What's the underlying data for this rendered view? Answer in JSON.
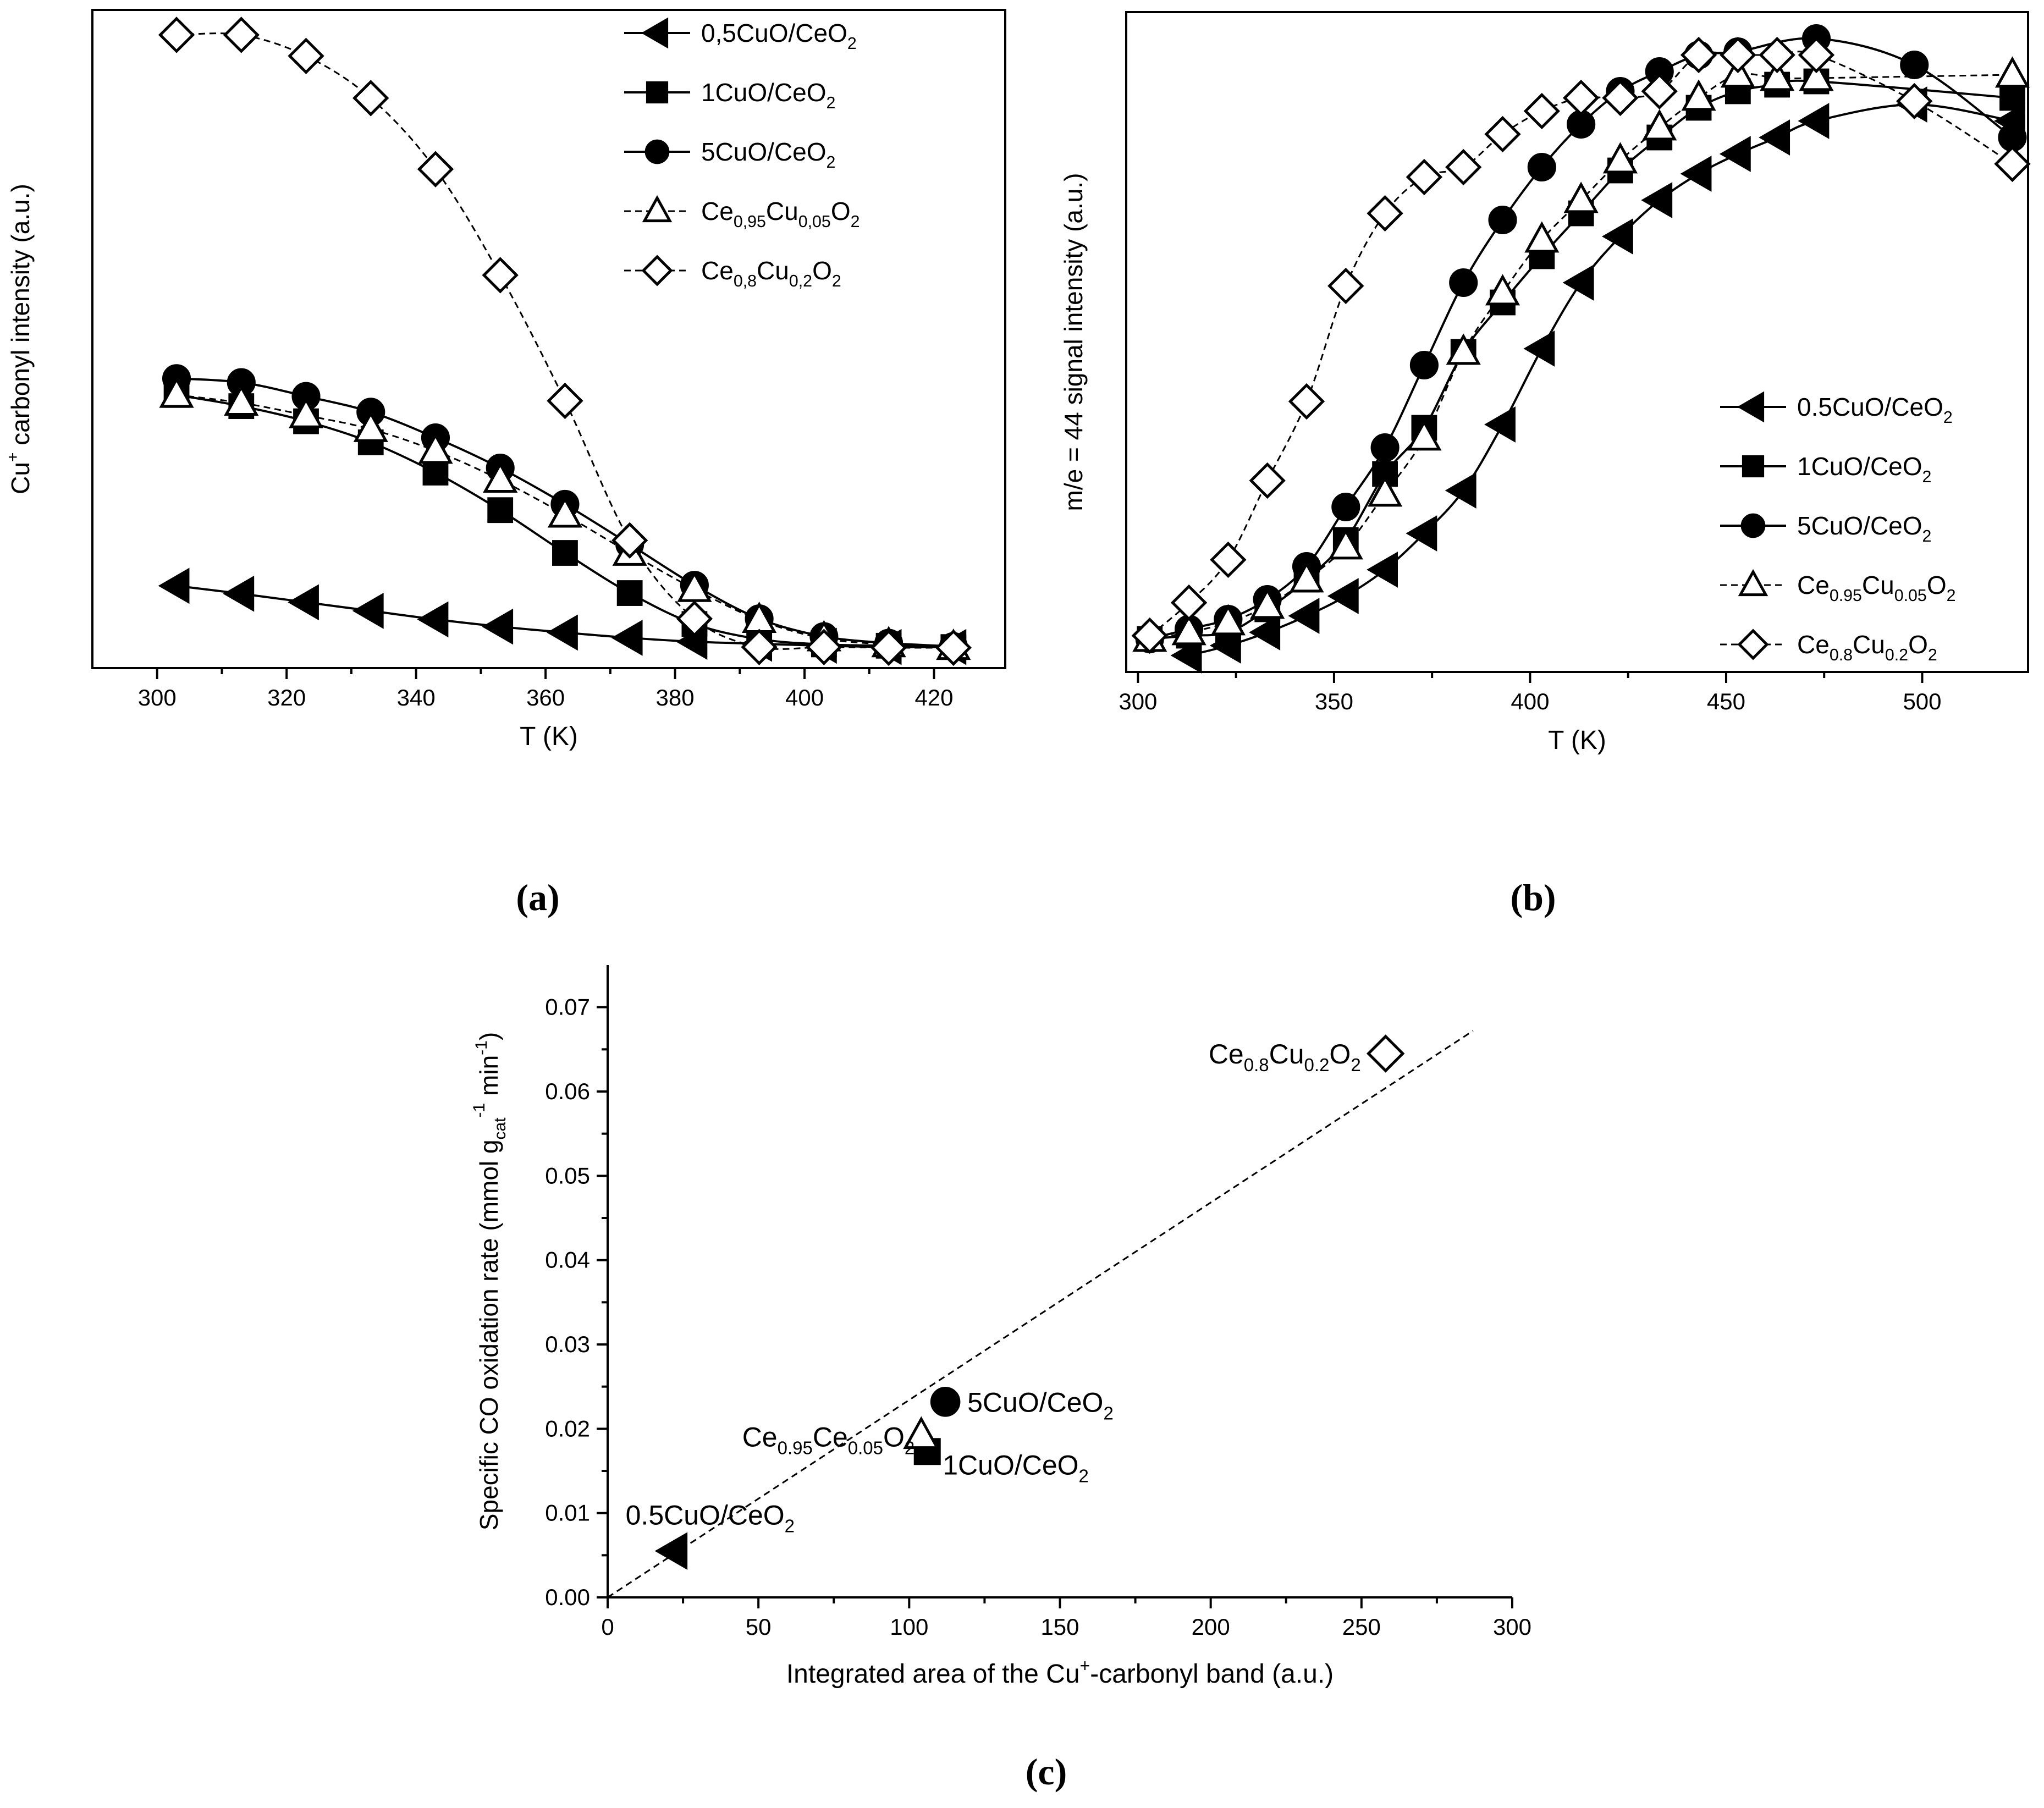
{
  "chart_data": [
    {
      "id": "a",
      "type": "line",
      "panel_label": "(a)",
      "xlabel": "T (K)",
      "ylabel": "Cu+ carbonyl intensity (a.u.)",
      "ylabel_parts": {
        "base": "Cu",
        "sup": "+",
        "rest": " carbonyl intensity (a.u.)"
      },
      "xlim": [
        290,
        431
      ],
      "ylim": [
        0,
        1
      ],
      "xticks": [
        300,
        320,
        340,
        360,
        380,
        400,
        420
      ],
      "y_tick_labels": false,
      "legend_position": "top-right",
      "series": [
        {
          "name": "0,5CuO/CeO2",
          "label": [
            {
              "t": "0,5CuO/CeO"
            },
            {
              "t": "2",
              "s": "sub"
            }
          ],
          "marker": "triangle-left",
          "line": "solid",
          "x": [
            303,
            313,
            323,
            333,
            343,
            353,
            363,
            373,
            383,
            393,
            403,
            413,
            423
          ],
          "y": [
            0.125,
            0.113,
            0.1,
            0.087,
            0.074,
            0.063,
            0.054,
            0.046,
            0.04,
            0.037,
            0.034,
            0.032,
            0.032
          ]
        },
        {
          "name": "1CuO/CeO2",
          "label": [
            {
              "t": "1CuO/CeO"
            },
            {
              "t": "2",
              "s": "sub"
            }
          ],
          "marker": "square",
          "line": "solid",
          "x": [
            303,
            313,
            323,
            333,
            343,
            353,
            363,
            373,
            383,
            393,
            403,
            413,
            423
          ],
          "y": [
            0.415,
            0.398,
            0.375,
            0.343,
            0.297,
            0.24,
            0.175,
            0.114,
            0.067,
            0.044,
            0.036,
            0.034,
            0.032
          ]
        },
        {
          "name": "5CuO/CeO2",
          "label": [
            {
              "t": "5CuO/CeO"
            },
            {
              "t": "2",
              "s": "sub"
            }
          ],
          "marker": "circle",
          "line": "solid",
          "x": [
            303,
            313,
            323,
            333,
            343,
            353,
            363,
            373,
            383,
            393,
            403,
            413,
            423
          ],
          "y": [
            0.44,
            0.434,
            0.413,
            0.389,
            0.35,
            0.304,
            0.249,
            0.188,
            0.126,
            0.075,
            0.048,
            0.038,
            0.033
          ]
        },
        {
          "name": "Ce0,95Cu0,05O2",
          "label": [
            {
              "t": "Ce"
            },
            {
              "t": "0,95",
              "s": "sub"
            },
            {
              "t": "Cu"
            },
            {
              "t": "0,05",
              "s": "sub"
            },
            {
              "t": "O"
            },
            {
              "t": "2",
              "s": "sub"
            }
          ],
          "marker": "triangle-up-open",
          "line": "dashed",
          "x": [
            303,
            313,
            323,
            333,
            343,
            353,
            363,
            373,
            383,
            393,
            403,
            413,
            423
          ],
          "y": [
            0.415,
            0.403,
            0.384,
            0.363,
            0.33,
            0.286,
            0.233,
            0.175,
            0.12,
            0.073,
            0.045,
            0.036,
            0.032
          ]
        },
        {
          "name": "Ce0,8Cu0,2O2",
          "label": [
            {
              "t": "Ce"
            },
            {
              "t": "0,8",
              "s": "sub"
            },
            {
              "t": "Cu"
            },
            {
              "t": "0,2",
              "s": "sub"
            },
            {
              "t": "O"
            },
            {
              "t": "2",
              "s": "sub"
            }
          ],
          "marker": "diamond-open",
          "line": "dashed",
          "x": [
            303,
            313,
            323,
            333,
            343,
            353,
            363,
            373,
            383,
            393,
            403,
            413,
            423
          ],
          "y": [
            0.962,
            0.962,
            0.93,
            0.866,
            0.758,
            0.597,
            0.406,
            0.194,
            0.075,
            0.032,
            0.032,
            0.031,
            0.031
          ]
        }
      ]
    },
    {
      "id": "b",
      "type": "line",
      "panel_label": "(b)",
      "xlabel": "T (K)",
      "ylabel": "m/e = 44 signal intensity (a.u.)",
      "xlim": [
        297,
        527
      ],
      "ylim": [
        0,
        1
      ],
      "xticks": [
        300,
        350,
        400,
        450,
        500
      ],
      "y_tick_labels": false,
      "legend_position": "right",
      "series": [
        {
          "name": "0.5CuO/CeO2",
          "label": [
            {
              "t": "0.5CuO/CeO"
            },
            {
              "t": "2",
              "s": "sub"
            }
          ],
          "marker": "triangle-left",
          "line": "solid",
          "x": [
            313,
            323,
            333,
            343,
            353,
            363,
            373,
            383,
            393,
            403,
            413,
            423,
            433,
            443,
            453,
            463,
            473,
            498,
            523
          ],
          "y": [
            0.025,
            0.04,
            0.06,
            0.085,
            0.115,
            0.155,
            0.21,
            0.275,
            0.375,
            0.49,
            0.59,
            0.66,
            0.715,
            0.755,
            0.785,
            0.81,
            0.835,
            0.86,
            0.835
          ]
        },
        {
          "name": "1CuO/CeO2",
          "label": [
            {
              "t": "1CuO/CeO"
            },
            {
              "t": "2",
              "s": "sub"
            }
          ],
          "marker": "square",
          "line": "solid",
          "x": [
            303,
            313,
            323,
            333,
            343,
            353,
            363,
            373,
            383,
            393,
            403,
            413,
            423,
            433,
            443,
            453,
            463,
            473,
            523
          ],
          "y": [
            0.05,
            0.055,
            0.06,
            0.095,
            0.14,
            0.2,
            0.3,
            0.37,
            0.485,
            0.56,
            0.63,
            0.695,
            0.76,
            0.81,
            0.855,
            0.88,
            0.89,
            0.895,
            0.87
          ]
        },
        {
          "name": "5CuO/CeO2",
          "label": [
            {
              "t": "5CuO/CeO"
            },
            {
              "t": "2",
              "s": "sub"
            }
          ],
          "marker": "circle",
          "line": "solid",
          "x": [
            303,
            313,
            323,
            333,
            343,
            353,
            363,
            373,
            383,
            393,
            403,
            413,
            423,
            433,
            443,
            453,
            473,
            498,
            523
          ],
          "y": [
            0.05,
            0.065,
            0.08,
            0.11,
            0.16,
            0.25,
            0.34,
            0.465,
            0.59,
            0.685,
            0.765,
            0.83,
            0.88,
            0.91,
            0.935,
            0.94,
            0.96,
            0.92,
            0.81
          ]
        },
        {
          "name": "Ce0.95Cu0.05O2",
          "label": [
            {
              "t": "Ce"
            },
            {
              "t": "0.95",
              "s": "sub"
            },
            {
              "t": "Cu"
            },
            {
              "t": "0.05",
              "s": "sub"
            },
            {
              "t": "O"
            },
            {
              "t": "2",
              "s": "sub"
            }
          ],
          "marker": "triangle-up-open",
          "line": "dashed",
          "x": [
            303,
            313,
            323,
            333,
            343,
            353,
            363,
            373,
            383,
            393,
            403,
            413,
            423,
            433,
            443,
            453,
            463,
            473,
            523
          ],
          "y": [
            0.05,
            0.06,
            0.075,
            0.1,
            0.14,
            0.19,
            0.27,
            0.355,
            0.485,
            0.575,
            0.655,
            0.715,
            0.775,
            0.825,
            0.87,
            0.905,
            0.9,
            0.9,
            0.905
          ]
        },
        {
          "name": "Ce0.8Cu0.2O2",
          "label": [
            {
              "t": "Ce"
            },
            {
              "t": "0.8",
              "s": "sub"
            },
            {
              "t": "Cu"
            },
            {
              "t": "0.2",
              "s": "sub"
            },
            {
              "t": "O"
            },
            {
              "t": "2",
              "s": "sub"
            }
          ],
          "marker": "diamond-open",
          "line": "dashed",
          "x": [
            303,
            313,
            323,
            333,
            343,
            353,
            363,
            373,
            383,
            393,
            403,
            413,
            423,
            433,
            443,
            453,
            463,
            473,
            498,
            523
          ],
          "y": [
            0.055,
            0.105,
            0.17,
            0.29,
            0.41,
            0.585,
            0.695,
            0.75,
            0.765,
            0.815,
            0.85,
            0.87,
            0.87,
            0.88,
            0.935,
            0.935,
            0.935,
            0.935,
            0.865,
            0.77
          ]
        }
      ]
    },
    {
      "id": "c",
      "type": "scatter",
      "panel_label": "(c)",
      "xlabel": "Integrated area of the Cu+-carbonyl band (a.u.)",
      "xlabel_parts": {
        "base": "Integrated area of the Cu",
        "sup": "+",
        "rest": "-carbonyl band (a.u.)"
      },
      "ylabel": "Specific CO oxidation rate (mmol gcat-1 min-1)",
      "ylabel_parts": {
        "a": "Specific CO oxidation rate (mmol g",
        "sub": "cat",
        "sup1": "-1",
        "b": " min",
        "sup2": "-1",
        "c": ")"
      },
      "xlim": [
        0,
        300
      ],
      "ylim": [
        0,
        0.075
      ],
      "xticks": [
        0,
        50,
        100,
        150,
        200,
        250,
        300
      ],
      "yticks": [
        0.0,
        0.01,
        0.02,
        0.03,
        0.04,
        0.05,
        0.06,
        0.07
      ],
      "ytick_labels": [
        "0.00",
        "0.01",
        "0.02",
        "0.03",
        "0.04",
        "0.05",
        "0.06",
        "0.07"
      ],
      "fit_line": {
        "style": "dashed",
        "x": [
          0,
          287
        ],
        "y": [
          0,
          0.0672
        ]
      },
      "points": [
        {
          "name": "0.5CuO/CeO2",
          "label": [
            {
              "t": "0.5CuO/CeO"
            },
            {
              "t": "2",
              "s": "sub"
            }
          ],
          "marker": "triangle-left",
          "x": 22,
          "y": 0.0055
        },
        {
          "name": "1CuO/CeO2",
          "label": [
            {
              "t": "1CuO/CeO"
            },
            {
              "t": "2",
              "s": "sub"
            }
          ],
          "marker": "square",
          "x": 106,
          "y": 0.0173
        },
        {
          "name": "5CuO/CeO2",
          "label": [
            {
              "t": "5CuO/CeO"
            },
            {
              "t": "2",
              "s": "sub"
            }
          ],
          "marker": "circle",
          "x": 112,
          "y": 0.0232
        },
        {
          "name": "Ce0.95Ce0.05O2",
          "label": [
            {
              "t": "Ce"
            },
            {
              "t": "0.95",
              "s": "sub"
            },
            {
              "t": "Ce"
            },
            {
              "t": "0.05",
              "s": "sub"
            },
            {
              "t": "O"
            },
            {
              "t": "2",
              "s": "sub"
            }
          ],
          "marker": "triangle-up-open",
          "x": 104,
          "y": 0.0192
        },
        {
          "name": "Ce0.8Cu0.2O2",
          "label": [
            {
              "t": "Ce"
            },
            {
              "t": "0.8",
              "s": "sub"
            },
            {
              "t": "Cu"
            },
            {
              "t": "0.2",
              "s": "sub"
            },
            {
              "t": "O"
            },
            {
              "t": "2",
              "s": "sub"
            }
          ],
          "marker": "diamond-open",
          "x": 258,
          "y": 0.0645
        }
      ]
    }
  ]
}
